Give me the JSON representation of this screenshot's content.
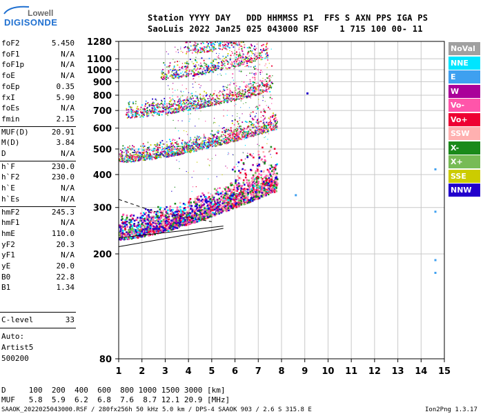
{
  "logo": {
    "top": "Lowell",
    "bottom": "DIGISONDE"
  },
  "header": {
    "line1": "Station YYYY DAY   DDD HHMMSS P1  FFS S AXN PPS IGA PS",
    "line2": "SaoLuis 2022 Jan25 025 043000 RSF    1 715 100 00- 11"
  },
  "params": [
    {
      "label": "foF2",
      "value": "5.450"
    },
    {
      "label": "foF1",
      "value": "N/A"
    },
    {
      "label": "foF1p",
      "value": "N/A"
    },
    {
      "label": "foE",
      "value": "N/A"
    },
    {
      "label": "foEp",
      "value": "0.35"
    },
    {
      "label": "fxI",
      "value": "5.90"
    },
    {
      "label": "foEs",
      "value": "N/A"
    },
    {
      "label": "fmin",
      "value": "2.15"
    },
    {
      "label": "MUF(D)",
      "value": "20.91"
    },
    {
      "label": "M(D)",
      "value": "3.84"
    },
    {
      "label": "D",
      "value": "N/A"
    },
    {
      "label": "h`F",
      "value": "230.0"
    },
    {
      "label": "h`F2",
      "value": "230.0"
    },
    {
      "label": "h`E",
      "value": "N/A"
    },
    {
      "label": "h`Es",
      "value": "N/A"
    },
    {
      "label": "hmF2",
      "value": "245.3"
    },
    {
      "label": "hmF1",
      "value": "N/A"
    },
    {
      "label": "hmE",
      "value": "110.0"
    },
    {
      "label": "yF2",
      "value": "20.3"
    },
    {
      "label": "yF1",
      "value": "N/A"
    },
    {
      "label": "yE",
      "value": "20.0"
    },
    {
      "label": "B0",
      "value": "22.8"
    },
    {
      "label": "B1",
      "value": "1.34"
    }
  ],
  "clevel": {
    "label": "C-level",
    "value": "33"
  },
  "auto": [
    "Auto:",
    "Artist5",
    "500200"
  ],
  "legend": [
    {
      "label": "NoVal",
      "color": "#a0a0a0"
    },
    {
      "label": "NNE",
      "color": "#00e5ff"
    },
    {
      "label": "E",
      "color": "#3ea0f0"
    },
    {
      "label": "W",
      "color": "#aa0099"
    },
    {
      "label": "Vo-",
      "color": "#ff55aa"
    },
    {
      "label": "Vo+",
      "color": "#ee0033"
    },
    {
      "label": "SSW",
      "color": "#ffb0b0"
    },
    {
      "label": "X-",
      "color": "#1a8a1a"
    },
    {
      "label": "X+",
      "color": "#77bb55"
    },
    {
      "label": "SSE",
      "color": "#cccc00"
    },
    {
      "label": "NNW",
      "color": "#2200cc"
    }
  ],
  "bottom": {
    "d_row": "D     100  200  400  600  800 1000 1500 3000 [km]",
    "muf_row": "MUF   5.8  5.9  6.2  6.8  7.6  8.7 12.1 20.9 [MHz]"
  },
  "footer": {
    "left": "SAAOK_2022025043000.RSF / 280fx256h 50 kHz 5.0 km / DPS-4 SAAOK 903 / 2.6 S 315.8 E",
    "right": "Ion2Png 1.3.17"
  },
  "chart_data": {
    "type": "scatter",
    "title": "",
    "xlabel": "",
    "ylabel": "",
    "xlim": [
      1,
      15
    ],
    "ylim": [
      80,
      1280
    ],
    "x_ticks": [
      1,
      2,
      3,
      4,
      5,
      6,
      7,
      8,
      9,
      10,
      11,
      12,
      13,
      14,
      15
    ],
    "y_ticks": [
      80,
      200,
      300,
      400,
      500,
      600,
      700,
      800,
      900,
      1000,
      1100,
      1280
    ],
    "y_scale": "log",
    "grid": true,
    "traces": [
      {
        "name": "hop1",
        "f_start": 1.0,
        "f_end": 7.8,
        "h_start": 235,
        "h_end": 360
      },
      {
        "name": "hop2",
        "f_start": 1.0,
        "f_end": 7.8,
        "h_start": 460,
        "h_end": 615
      },
      {
        "name": "hop3",
        "f_start": 1.3,
        "f_end": 7.6,
        "h_start": 680,
        "h_end": 860
      },
      {
        "name": "hop4",
        "f_start": 2.8,
        "f_end": 7.4,
        "h_start": 950,
        "h_end": 1150
      },
      {
        "name": "hop5",
        "f_start": 3.8,
        "f_end": 6.4,
        "h_start": 1190,
        "h_end": 1290
      }
    ],
    "profile_lines": {
      "solid": [
        [
          1.0,
          230
        ],
        [
          5.5,
          255
        ]
      ],
      "solid_low": [
        [
          1.0,
          213
        ],
        [
          5.5,
          250
        ]
      ],
      "dashed": [
        [
          1.0,
          322
        ],
        [
          2.5,
          290
        ],
        [
          5.0,
          265
        ]
      ]
    },
    "isolated_points": [
      {
        "x": 14.6,
        "y": 420,
        "color": "#3ea0f0"
      },
      {
        "x": 14.6,
        "y": 290,
        "color": "#3ea0f0"
      },
      {
        "x": 14.6,
        "y": 190,
        "color": "#3ea0f0"
      },
      {
        "x": 14.6,
        "y": 170,
        "color": "#3ea0f0"
      },
      {
        "x": 9.1,
        "y": 815,
        "color": "#2200cc"
      },
      {
        "x": 8.6,
        "y": 335,
        "color": "#3ea0f0"
      }
    ]
  }
}
